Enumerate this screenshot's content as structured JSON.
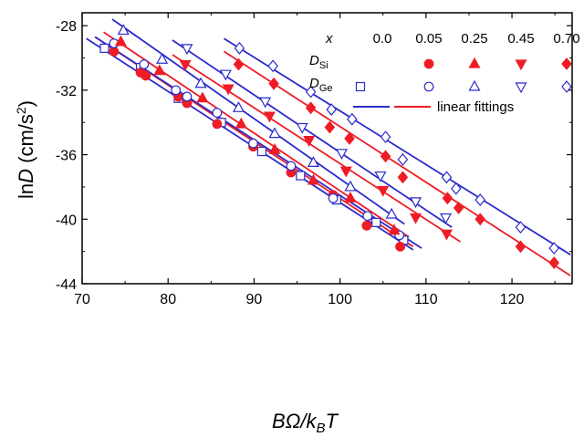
{
  "chart_data": {
    "type": "scatter",
    "xlabel": "BΩ/k_BT",
    "ylabel": "lnD (cm/s^2)",
    "xlim": [
      70,
      127
    ],
    "ylim": [
      -44,
      -27.2
    ],
    "xticks": [
      70,
      80,
      90,
      100,
      110,
      120
    ],
    "yticks": [
      -44,
      -40,
      -36,
      -32,
      -28
    ],
    "xtick_labels": [
      "70",
      "80",
      "90",
      "100",
      "110",
      "120"
    ],
    "ytick_labels": [
      "-44",
      "-40",
      "-36",
      "-32",
      "-28"
    ],
    "grid": false,
    "legend_position": "top-right",
    "legend": {
      "x_label": "x",
      "x_values": [
        "0.0",
        "0.05",
        "0.25",
        "0.45",
        "0.70"
      ],
      "row_si": "D_Si",
      "row_ge": "D_Ge",
      "fit_label": "linear fittings"
    },
    "colors": {
      "si": "#ee1c25",
      "ge": "#2b2bcc"
    },
    "series": [
      {
        "name": "D_Ge x=0.0",
        "marker": "square",
        "filled": false,
        "color": "#2b2bcc",
        "points": [
          [
            72.6,
            -29.4
          ],
          [
            76.8,
            -30.6
          ],
          [
            81.2,
            -32.5
          ],
          [
            86.2,
            -34.0
          ],
          [
            90.9,
            -35.8
          ],
          [
            95.4,
            -37.3
          ],
          [
            99.6,
            -38.8
          ],
          [
            104.2,
            -40.2
          ],
          [
            107.4,
            -41.3
          ]
        ],
        "fit": [
          [
            70.5,
            -28.8
          ],
          [
            108.5,
            -41.9
          ]
        ]
      },
      {
        "name": "D_Si x=0.0",
        "marker": "circle",
        "filled": true,
        "color": "#ee1c25",
        "points": [
          [
            73.7,
            -29.6
          ],
          [
            76.8,
            -30.9
          ],
          [
            77.4,
            -31.1
          ],
          [
            81.2,
            -32.4
          ],
          [
            82.2,
            -32.8
          ],
          [
            85.7,
            -34.1
          ],
          [
            89.9,
            -35.5
          ],
          [
            94.3,
            -37.1
          ],
          [
            99.2,
            -38.5
          ],
          [
            103.1,
            -40.4
          ],
          [
            107.0,
            -41.7
          ]
        ],
        "fit": [
          [
            71.5,
            -28.7
          ],
          [
            108.5,
            -41.7
          ]
        ]
      },
      {
        "name": "D_Ge x=0.05",
        "marker": "circle",
        "filled": false,
        "color": "#2b2bcc",
        "points": [
          [
            73.7,
            -29.1
          ],
          [
            77.2,
            -30.4
          ],
          [
            80.9,
            -32.0
          ],
          [
            82.2,
            -32.4
          ],
          [
            85.7,
            -33.4
          ],
          [
            89.9,
            -35.3
          ],
          [
            94.3,
            -36.7
          ],
          [
            99.2,
            -38.7
          ],
          [
            103.2,
            -39.8
          ],
          [
            106.9,
            -41.0
          ]
        ],
        "fit": [
          [
            71.5,
            -28.7
          ],
          [
            109.5,
            -41.8
          ]
        ]
      },
      {
        "name": "D_Si x=0.25",
        "marker": "triangle-up",
        "filled": true,
        "color": "#ee1c25",
        "points": [
          [
            74.5,
            -29.0
          ],
          [
            79.0,
            -30.8
          ],
          [
            84.0,
            -32.5
          ],
          [
            88.5,
            -34.1
          ],
          [
            92.4,
            -35.7
          ],
          [
            96.9,
            -37.6
          ],
          [
            101.2,
            -38.7
          ],
          [
            106.3,
            -40.7
          ]
        ],
        "fit": [
          [
            72.5,
            -28.4
          ],
          [
            108.0,
            -41.1
          ]
        ]
      },
      {
        "name": "D_Ge x=0.25",
        "marker": "triangle-up",
        "filled": false,
        "color": "#2b2bcc",
        "points": [
          [
            74.8,
            -28.3
          ],
          [
            79.3,
            -30.1
          ],
          [
            83.8,
            -31.6
          ],
          [
            88.2,
            -33.1
          ],
          [
            92.4,
            -34.7
          ],
          [
            96.9,
            -36.5
          ],
          [
            101.2,
            -38.0
          ],
          [
            106.0,
            -39.7
          ]
        ],
        "fit": [
          [
            73.5,
            -27.6
          ],
          [
            107.5,
            -40.3
          ]
        ]
      },
      {
        "name": "D_Si x=0.45",
        "marker": "triangle-down",
        "filled": true,
        "color": "#ee1c25",
        "points": [
          [
            82.0,
            -30.4
          ],
          [
            87.0,
            -31.9
          ],
          [
            91.8,
            -33.6
          ],
          [
            96.4,
            -35.1
          ],
          [
            100.7,
            -37.0
          ],
          [
            105.0,
            -38.2
          ],
          [
            108.8,
            -39.9
          ],
          [
            112.4,
            -40.9
          ]
        ],
        "fit": [
          [
            80.5,
            -29.8
          ],
          [
            114.0,
            -41.4
          ]
        ]
      },
      {
        "name": "D_Ge x=0.45",
        "marker": "triangle-down",
        "filled": false,
        "color": "#2b2bcc",
        "points": [
          [
            82.2,
            -29.4
          ],
          [
            86.7,
            -31.0
          ],
          [
            91.3,
            -32.7
          ],
          [
            95.6,
            -34.3
          ],
          [
            100.2,
            -35.9
          ],
          [
            104.7,
            -37.3
          ],
          [
            108.8,
            -38.9
          ],
          [
            112.3,
            -39.9
          ]
        ],
        "fit": [
          [
            80.5,
            -28.9
          ],
          [
            113.0,
            -40.5
          ]
        ]
      },
      {
        "name": "D_Si x=0.70",
        "marker": "diamond",
        "filled": true,
        "color": "#ee1c25",
        "points": [
          [
            88.2,
            -30.4
          ],
          [
            92.3,
            -31.6
          ],
          [
            96.6,
            -33.1
          ],
          [
            98.8,
            -34.3
          ],
          [
            101.1,
            -35.0
          ],
          [
            105.3,
            -36.1
          ],
          [
            107.3,
            -37.4
          ],
          [
            112.5,
            -38.7
          ],
          [
            113.8,
            -39.3
          ],
          [
            116.3,
            -40.0
          ],
          [
            121.0,
            -41.7
          ],
          [
            124.9,
            -42.7
          ]
        ],
        "fit": [
          [
            86.5,
            -29.6
          ],
          [
            126.8,
            -43.5
          ]
        ]
      },
      {
        "name": "D_Ge x=0.70",
        "marker": "diamond",
        "filled": false,
        "color": "#2b2bcc",
        "points": [
          [
            88.3,
            -29.4
          ],
          [
            92.2,
            -30.5
          ],
          [
            96.6,
            -32.1
          ],
          [
            99.0,
            -33.2
          ],
          [
            101.4,
            -33.8
          ],
          [
            105.3,
            -34.9
          ],
          [
            107.3,
            -36.3
          ],
          [
            112.4,
            -37.4
          ],
          [
            113.5,
            -38.1
          ],
          [
            116.3,
            -38.8
          ],
          [
            121.0,
            -40.5
          ],
          [
            124.9,
            -41.8
          ]
        ],
        "fit": [
          [
            86.5,
            -28.8
          ],
          [
            126.8,
            -42.2
          ]
        ]
      }
    ]
  }
}
